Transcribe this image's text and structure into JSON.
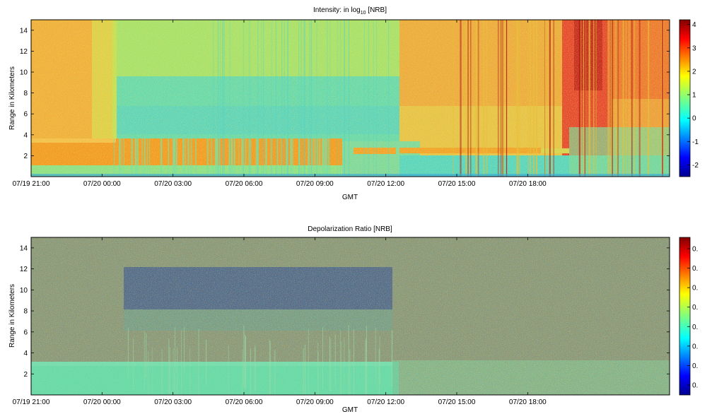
{
  "panels": [
    {
      "title": "Intensity: in log",
      "title_sub": "10",
      "title_tail": " [NRB]",
      "xlabel": "GMT",
      "ylabel": "Range in Kilometers",
      "yticks": [
        "2",
        "4",
        "6",
        "8",
        "10",
        "12",
        "14"
      ],
      "xticks": [
        "07/19 21:00",
        "07/20 00:00",
        "07/20 03:00",
        "07/20 06:00",
        "07/20 09:00",
        "07/20 12:00",
        "07/20 15:00",
        "07/20 18:00"
      ],
      "colorbar_ticks": [
        "4",
        "3",
        "2",
        "1",
        "0",
        "-1",
        "-2"
      ]
    },
    {
      "title": "Depolarization Ratio [NRB]",
      "title_sub": "",
      "title_tail": "",
      "xlabel": "GMT",
      "ylabel": "Range in Kilometers",
      "yticks": [
        "2",
        "4",
        "6",
        "8",
        "10",
        "12",
        "14"
      ],
      "xticks": [
        "07/19 21:00",
        "07/20 00:00",
        "07/20 03:00",
        "07/20 06:00",
        "07/20 09:00",
        "07/20 12:00",
        "07/20 15:00",
        "07/20 18:00"
      ],
      "colorbar_ticks": [
        "0.",
        "0.",
        "0.",
        "0.",
        "0.",
        "0.",
        "0.",
        "0."
      ]
    }
  ],
  "chart_data": [
    {
      "type": "heatmap",
      "title": "Intensity: in log10 [NRB]",
      "xlabel": "GMT",
      "ylabel": "Range in Kilometers",
      "x_range": [
        "07/19 21:00",
        "07/21 00:00"
      ],
      "ylim": [
        0,
        15
      ],
      "color_range": [
        -2.5,
        4.2
      ],
      "colormap": "jet",
      "grid": false,
      "colorbar": "right",
      "regions": [
        {
          "t_start": "07/19 21:00",
          "t_end": "07/20 00:00",
          "z_low": 4,
          "z_high": 15,
          "level": 2.2
        },
        {
          "t_start": "07/20 00:00",
          "t_end": "07/20 10:30",
          "z_low": 4,
          "z_high": 15,
          "level": 0.3
        },
        {
          "t_start": "07/20 10:30",
          "t_end": "07/20 17:00",
          "z_low": 4,
          "z_high": 15,
          "level": 2.3
        },
        {
          "t_start": "07/20 17:00",
          "t_end": "07/20 19:00",
          "z_low": 4,
          "z_high": 15,
          "level": 3.3
        },
        {
          "t_start": "07/20 19:00",
          "t_end": "07/21 00:00",
          "z_low": 4,
          "z_high": 15,
          "level": 2.5
        },
        {
          "t_start": "07/19 21:00",
          "t_end": "07/20 08:00",
          "z_low": 0.5,
          "z_high": 3.8,
          "level": 2.7
        },
        {
          "t_start": "07/20 08:00",
          "t_end": "07/20 14:30",
          "z_low": 2.3,
          "z_high": 3.0,
          "level": 2.5
        },
        {
          "t_start": "07/20 10:30",
          "t_end": "07/21 00:00",
          "z_low": 0,
          "z_high": 4,
          "level": 0.5
        }
      ]
    },
    {
      "type": "heatmap",
      "title": "Depolarization Ratio [NRB]",
      "xlabel": "GMT",
      "ylabel": "Range in Kilometers",
      "x_range": [
        "07/19 21:00",
        "07/21 00:00"
      ],
      "ylim": [
        0,
        15
      ],
      "colormap": "jet",
      "grid": false,
      "colorbar": "right",
      "regions": [
        {
          "t_start": "07/19 21:00",
          "t_end": "07/21 00:00",
          "z_low": 4,
          "z_high": 15,
          "level": "noisy"
        },
        {
          "t_start": "07/20 00:00",
          "t_end": "07/20 10:30",
          "z_low": 9,
          "z_high": 13,
          "level": "dark noisy band"
        },
        {
          "t_start": "07/19 21:00",
          "t_end": "07/20 11:00",
          "z_low": 0,
          "z_high": 3.7,
          "level": "low (cyan-green)"
        },
        {
          "t_start": "07/20 11:00",
          "t_end": "07/21 00:00",
          "z_low": 0,
          "z_high": 3.0,
          "level": "mixed"
        }
      ]
    }
  ]
}
